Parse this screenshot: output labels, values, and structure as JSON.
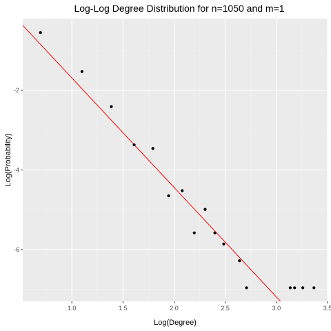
{
  "chart_data": {
    "type": "scatter",
    "title": "Log-Log Degree Distribution for n=1050 and m=1",
    "xlabel": "Log(Degree)",
    "ylabel": "Log(Probability)",
    "xlim": [
      0.52,
      3.5
    ],
    "ylim": [
      -7.3,
      -0.2
    ],
    "x_ticks": [
      1.0,
      1.5,
      2.0,
      2.5,
      3.0,
      3.5
    ],
    "x_tick_labels": [
      "1.0",
      "1.5",
      "2.0",
      "2.5",
      "3.0",
      "3.5"
    ],
    "y_ticks": [
      -2,
      -4,
      -6
    ],
    "y_tick_labels": [
      "-2",
      "-4",
      "-6"
    ],
    "grid": true,
    "legend": "none",
    "colors": {
      "panel_background": "#EBEBEB",
      "grid_major": "#FFFFFF",
      "grid_minor": "#F2F2F2",
      "points": "#000000",
      "fit_line": "#FF0000"
    },
    "points": [
      {
        "x": 0.693,
        "y": -0.55
      },
      {
        "x": 1.099,
        "y": -1.53
      },
      {
        "x": 1.386,
        "y": -2.41
      },
      {
        "x": 1.609,
        "y": -3.37
      },
      {
        "x": 1.792,
        "y": -3.46
      },
      {
        "x": 1.946,
        "y": -4.65
      },
      {
        "x": 2.079,
        "y": -4.52
      },
      {
        "x": 2.197,
        "y": -5.58
      },
      {
        "x": 2.303,
        "y": -4.99
      },
      {
        "x": 2.398,
        "y": -5.58
      },
      {
        "x": 2.485,
        "y": -5.86
      },
      {
        "x": 2.639,
        "y": -6.28
      },
      {
        "x": 2.708,
        "y": -6.96
      },
      {
        "x": 3.135,
        "y": -6.96
      },
      {
        "x": 3.178,
        "y": -6.96
      },
      {
        "x": 3.258,
        "y": -6.96
      },
      {
        "x": 3.367,
        "y": -6.96
      }
    ],
    "fit_line": {
      "slope": -2.75,
      "intercept": 1.06,
      "x_range": [
        0.52,
        3.2
      ]
    }
  }
}
